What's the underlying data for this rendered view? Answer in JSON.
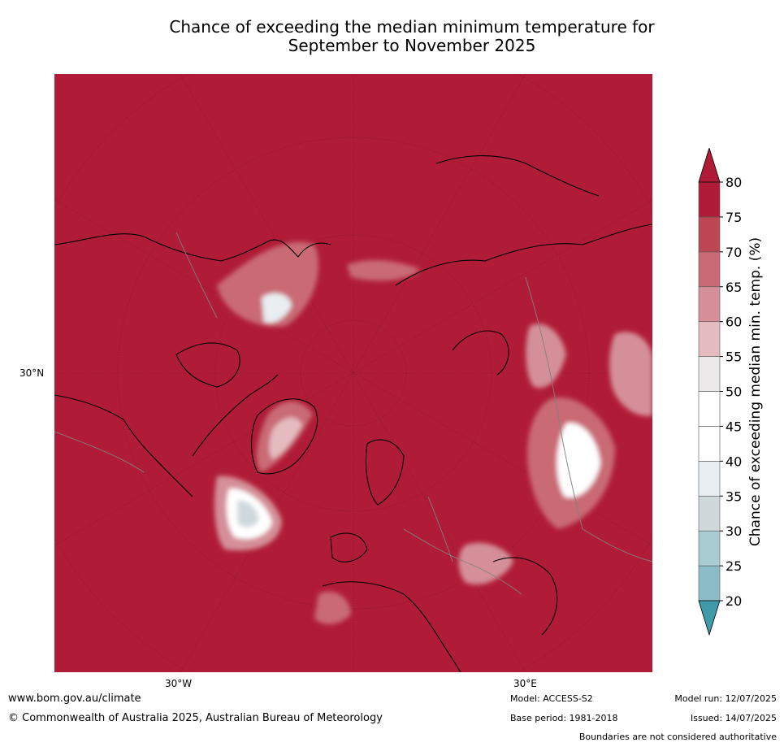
{
  "title": {
    "line1": "Chance of exceeding the median minimum temperature for",
    "line2": "September to November 2025"
  },
  "map": {
    "lat_label": "30°N",
    "lon_labels": [
      "30°W",
      "30°E"
    ],
    "background_color": "#b01c37",
    "coastline_color": "#000000",
    "border_color": "#808080"
  },
  "legend": {
    "title": "Chance of exceeding median min. temp. (%)",
    "ticks": [
      "20",
      "25",
      "30",
      "35",
      "40",
      "45",
      "50",
      "55",
      "60",
      "65",
      "70",
      "75",
      "80"
    ],
    "colors": [
      "#6aafbe",
      "#8bbcc8",
      "#a9cbd2",
      "#cfd9dc",
      "#e8eef1",
      "#ffffff",
      "#ffffff",
      "#ebe9ea",
      "#e4bcc0",
      "#d48f98",
      "#c96b75",
      "#bd4753",
      "#b01c37"
    ],
    "under_color": "#3f9aaa",
    "over_color": "#b01c37"
  },
  "footer": {
    "website": "www.bom.gov.au/climate",
    "copyright": "© Commonwealth of Australia 2025, Australian Bureau of Meteorology",
    "model": "Model: ACCESS-S2",
    "base_period": "Base period: 1981-2018",
    "model_run": "Model run: 12/07/2025",
    "issued": "Issued: 14/07/2025",
    "disclaimer": "Boundaries are not considered authoritative"
  }
}
